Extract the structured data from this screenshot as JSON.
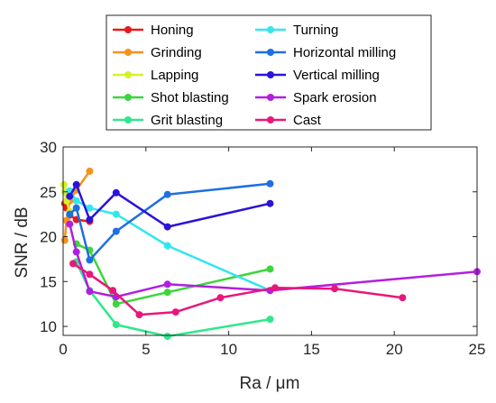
{
  "chart_data": {
    "type": "line",
    "xlabel": "Ra / μm",
    "ylabel": "SNR / dB",
    "xlim": [
      0,
      25
    ],
    "ylim": [
      9,
      30
    ],
    "xticks": [
      0,
      5,
      10,
      15,
      20,
      25
    ],
    "yticks": [
      10,
      15,
      20,
      25,
      30
    ],
    "xtick_labels": [
      "0",
      "5",
      "10",
      "15",
      "20",
      "25"
    ],
    "ytick_labels": [
      "10",
      "15",
      "20",
      "25",
      "30"
    ],
    "grid": false,
    "legend_position": "top",
    "series": [
      {
        "name": "Honing",
        "color": "#e81a1a",
        "points": [
          [
            0.1,
            23.7
          ],
          [
            0.2,
            23.2
          ],
          [
            0.4,
            22.4
          ],
          [
            0.8,
            21.9
          ],
          [
            1.6,
            21.7
          ]
        ]
      },
      {
        "name": "Grinding",
        "color": "#f5921e",
        "points": [
          [
            0.1,
            19.6
          ],
          [
            0.2,
            21.8
          ],
          [
            0.4,
            24.0
          ],
          [
            0.8,
            25.2
          ],
          [
            1.6,
            27.3
          ]
        ]
      },
      {
        "name": "Lapping",
        "color": "#d6f02a",
        "points": [
          [
            0.05,
            25.8
          ],
          [
            0.1,
            25.0
          ],
          [
            0.2,
            24.0
          ],
          [
            0.4,
            22.8
          ]
        ]
      },
      {
        "name": "Shot blasting",
        "color": "#3ad63a",
        "points": [
          [
            0.8,
            19.2
          ],
          [
            1.6,
            18.5
          ],
          [
            3.2,
            12.5
          ],
          [
            6.3,
            13.8
          ],
          [
            12.5,
            16.4
          ]
        ]
      },
      {
        "name": "Grit blasting",
        "color": "#2ee88a",
        "points": [
          [
            0.8,
            17.2
          ],
          [
            1.6,
            14.0
          ],
          [
            3.2,
            10.2
          ],
          [
            6.3,
            8.9
          ],
          [
            12.5,
            10.8
          ]
        ]
      },
      {
        "name": "Turning",
        "color": "#33e6ee",
        "points": [
          [
            0.4,
            25.1
          ],
          [
            0.8,
            24.0
          ],
          [
            1.6,
            23.2
          ],
          [
            3.2,
            22.5
          ],
          [
            6.3,
            19.0
          ],
          [
            12.5,
            14.0
          ]
        ]
      },
      {
        "name": "Horizontal milling",
        "color": "#1f6fe0",
        "points": [
          [
            0.4,
            22.5
          ],
          [
            0.8,
            23.2
          ],
          [
            1.6,
            17.4
          ],
          [
            3.2,
            20.6
          ],
          [
            6.3,
            24.7
          ],
          [
            12.5,
            25.9
          ]
        ]
      },
      {
        "name": "Vertical milling",
        "color": "#2a14d8",
        "points": [
          [
            0.4,
            24.5
          ],
          [
            0.8,
            25.8
          ],
          [
            1.6,
            21.9
          ],
          [
            3.2,
            24.9
          ],
          [
            6.3,
            21.1
          ],
          [
            12.5,
            23.7
          ]
        ]
      },
      {
        "name": "Spark erosion",
        "color": "#b21ee0",
        "points": [
          [
            0.4,
            21.4
          ],
          [
            0.8,
            18.3
          ],
          [
            1.6,
            13.9
          ],
          [
            3.2,
            13.3
          ],
          [
            6.3,
            14.7
          ],
          [
            12.5,
            14.0
          ],
          [
            25.0,
            16.1
          ]
        ]
      },
      {
        "name": "Cast",
        "color": "#e8177a",
        "points": [
          [
            0.6,
            17.0
          ],
          [
            1.6,
            15.8
          ],
          [
            3.0,
            14.0
          ],
          [
            4.6,
            11.3
          ],
          [
            6.8,
            11.6
          ],
          [
            9.5,
            13.2
          ],
          [
            12.8,
            14.3
          ],
          [
            16.4,
            14.2
          ],
          [
            20.5,
            13.2
          ]
        ]
      }
    ]
  }
}
